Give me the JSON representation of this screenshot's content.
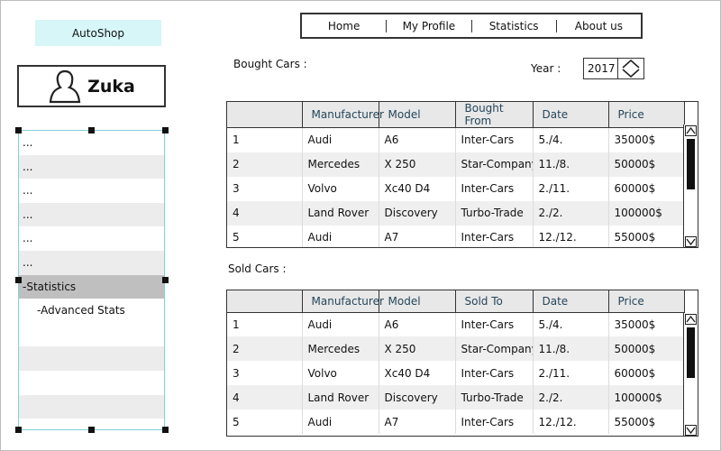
{
  "brand": {
    "name": "AutoShop"
  },
  "user": {
    "name": "Zuka"
  },
  "nav": {
    "items": [
      "Home",
      "My Profile",
      "Statistics",
      "About us"
    ]
  },
  "sidebar": {
    "items": [
      {
        "label": "...",
        "state": "normal"
      },
      {
        "label": "...",
        "state": "alt"
      },
      {
        "label": "...",
        "state": "normal"
      },
      {
        "label": "...",
        "state": "alt"
      },
      {
        "label": "...",
        "state": "normal"
      },
      {
        "label": "...",
        "state": "alt"
      },
      {
        "label": "-Statistics",
        "state": "selected"
      },
      {
        "label": "-Advanced Stats",
        "state": "sub"
      },
      {
        "label": "",
        "state": "normal"
      },
      {
        "label": "",
        "state": "alt"
      },
      {
        "label": "",
        "state": "normal"
      },
      {
        "label": "",
        "state": "alt"
      },
      {
        "label": "",
        "state": "normal"
      }
    ]
  },
  "year": {
    "label": "Year :",
    "value": "2017"
  },
  "bought": {
    "title": "Bought Cars :",
    "columns": [
      "",
      "Manufacturer",
      "Model",
      "Bought From",
      "Date",
      "Price"
    ],
    "rows": [
      [
        "1",
        "Audi",
        "A6",
        "Inter-Cars",
        "5./4.",
        "35000$"
      ],
      [
        "2",
        "Mercedes",
        "X 250",
        "Star-Company",
        "11./8.",
        "50000$"
      ],
      [
        "3",
        "Volvo",
        "Xc40 D4",
        "Inter-Cars",
        "2./11.",
        "60000$"
      ],
      [
        "4",
        "Land Rover",
        "Discovery",
        "Turbo-Trade",
        "2./2.",
        "100000$"
      ],
      [
        "5",
        "Audi",
        "A7",
        "Inter-Cars",
        "12./12.",
        "55000$"
      ]
    ]
  },
  "sold": {
    "title": "Sold Cars :",
    "columns": [
      "",
      "Manufacturer",
      "Model",
      "Sold To",
      "Date",
      "Price"
    ],
    "rows": [
      [
        "1",
        "Audi",
        "A6",
        "Inter-Cars",
        "5./4.",
        "35000$"
      ],
      [
        "2",
        "Mercedes",
        "X 250",
        "Star-Company",
        "11./8.",
        "50000$"
      ],
      [
        "3",
        "Volvo",
        "Xc40 D4",
        "Inter-Cars",
        "2./11.",
        "60000$"
      ],
      [
        "4",
        "Land Rover",
        "Discovery",
        "Turbo-Trade",
        "2./2.",
        "100000$"
      ],
      [
        "5",
        "Audi",
        "A7",
        "Inter-Cars",
        "12./12.",
        "55000$"
      ]
    ]
  }
}
